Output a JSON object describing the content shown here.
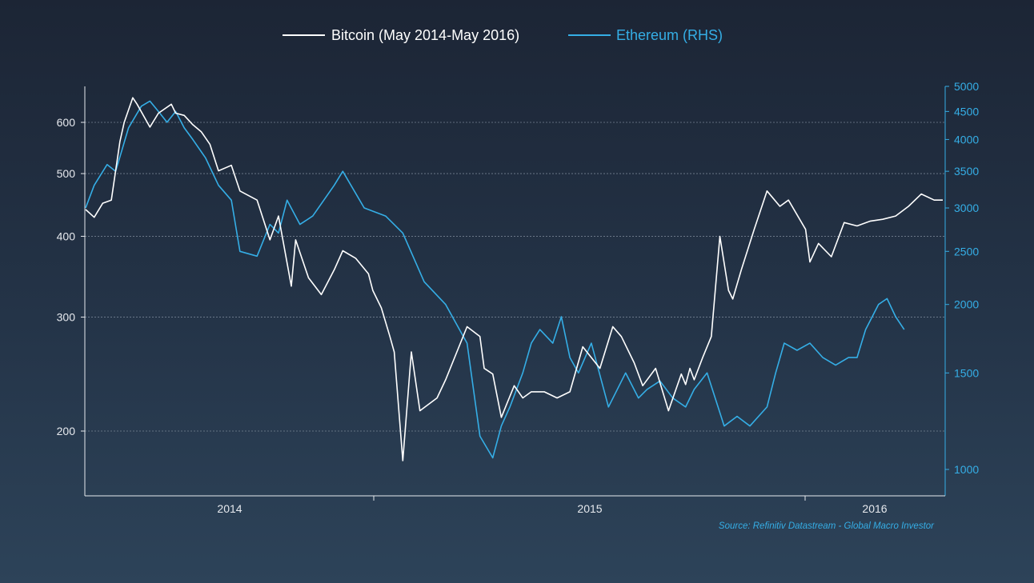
{
  "colors": {
    "bitcoin": "#ffffff",
    "ethereum": "#35aee6",
    "axis_left": "#e6e9ee",
    "axis_right": "#35aee6",
    "grid": "#8a96a6"
  },
  "legend": {
    "bitcoin": "Bitcoin (May 2014-May 2016)",
    "ethereum": "Ethereum (RHS)"
  },
  "source": "Source: Refinitiv Datastream - Global Macro Investor",
  "chart_data": {
    "type": "line",
    "grid": true,
    "legend_position": "top-center",
    "x_ticks": [
      "2014",
      "2015",
      "2016"
    ],
    "y_left": {
      "scale": "log",
      "range": [
        165,
        680
      ],
      "ticks": [
        200,
        300,
        400,
        500,
        600
      ]
    },
    "y_right": {
      "scale": "log",
      "range": [
        940,
        5000
      ],
      "ticks": [
        1000,
        1500,
        2000,
        2500,
        3000,
        3500,
        4000,
        4500,
        5000
      ]
    },
    "series": [
      {
        "name": "Bitcoin (May 2014-May 2016)",
        "axis": "left",
        "x": [
          0,
          0.01,
          0.02,
          0.03,
          0.04,
          0.045,
          0.055,
          0.06,
          0.075,
          0.085,
          0.1,
          0.105,
          0.115,
          0.125,
          0.135,
          0.145,
          0.155,
          0.17,
          0.18,
          0.2,
          0.215,
          0.225,
          0.24,
          0.245,
          0.26,
          0.275,
          0.29,
          0.3,
          0.315,
          0.33,
          0.335,
          0.345,
          0.355,
          0.36,
          0.37,
          0.38,
          0.39,
          0.41,
          0.42,
          0.445,
          0.46,
          0.465,
          0.475,
          0.485,
          0.5,
          0.51,
          0.52,
          0.535,
          0.55,
          0.565,
          0.58,
          0.6,
          0.615,
          0.625,
          0.64,
          0.65,
          0.665,
          0.68,
          0.695,
          0.7,
          0.705,
          0.71,
          0.72,
          0.73,
          0.74,
          0.75,
          0.755,
          0.765,
          0.78,
          0.795,
          0.81,
          0.82,
          0.84,
          0.845,
          0.855,
          0.87,
          0.885,
          0.9,
          0.915,
          0.93,
          0.945,
          0.96,
          0.975,
          0.99,
          1.0
        ],
        "values": [
          440,
          428,
          450,
          455,
          560,
          600,
          655,
          640,
          590,
          620,
          640,
          620,
          615,
          595,
          580,
          555,
          505,
          515,
          470,
          455,
          395,
          430,
          335,
          395,
          345,
          325,
          355,
          380,
          370,
          350,
          330,
          310,
          280,
          265,
          180,
          265,
          215,
          225,
          240,
          290,
          280,
          250,
          245,
          210,
          235,
          225,
          230,
          230,
          225,
          230,
          270,
          250,
          290,
          280,
          255,
          235,
          250,
          215,
          245,
          236,
          250,
          240,
          260,
          280,
          400,
          330,
          320,
          355,
          410,
          470,
          445,
          455,
          410,
          365,
          390,
          372,
          420,
          415,
          422,
          425,
          430,
          445,
          465,
          455,
          455
        ]
      },
      {
        "name": "Ethereum (RHS)",
        "axis": "right",
        "x": [
          0,
          0.01,
          0.025,
          0.035,
          0.05,
          0.065,
          0.075,
          0.085,
          0.095,
          0.105,
          0.115,
          0.125,
          0.14,
          0.155,
          0.17,
          0.18,
          0.2,
          0.215,
          0.225,
          0.235,
          0.25,
          0.265,
          0.29,
          0.3,
          0.325,
          0.35,
          0.37,
          0.395,
          0.42,
          0.445,
          0.46,
          0.475,
          0.485,
          0.495,
          0.51,
          0.52,
          0.53,
          0.545,
          0.555,
          0.565,
          0.575,
          0.59,
          0.61,
          0.63,
          0.645,
          0.655,
          0.67,
          0.685,
          0.7,
          0.71,
          0.725,
          0.745,
          0.76,
          0.775,
          0.795,
          0.805,
          0.815,
          0.83,
          0.845,
          0.86,
          0.875,
          0.89,
          0.9,
          0.91,
          0.925,
          0.935,
          0.945,
          0.955
        ],
        "values": [
          3000,
          3300,
          3600,
          3500,
          4200,
          4600,
          4700,
          4500,
          4300,
          4500,
          4200,
          4000,
          3700,
          3300,
          3100,
          2500,
          2450,
          2800,
          2700,
          3100,
          2800,
          2900,
          3300,
          3500,
          3000,
          2900,
          2700,
          2200,
          2000,
          1700,
          1150,
          1050,
          1200,
          1300,
          1500,
          1700,
          1800,
          1700,
          1900,
          1600,
          1500,
          1700,
          1300,
          1500,
          1350,
          1400,
          1450,
          1350,
          1300,
          1400,
          1500,
          1200,
          1250,
          1200,
          1300,
          1500,
          1700,
          1650,
          1700,
          1600,
          1550,
          1600,
          1600,
          1800,
          2000,
          2050,
          1900,
          1800
        ]
      }
    ]
  }
}
